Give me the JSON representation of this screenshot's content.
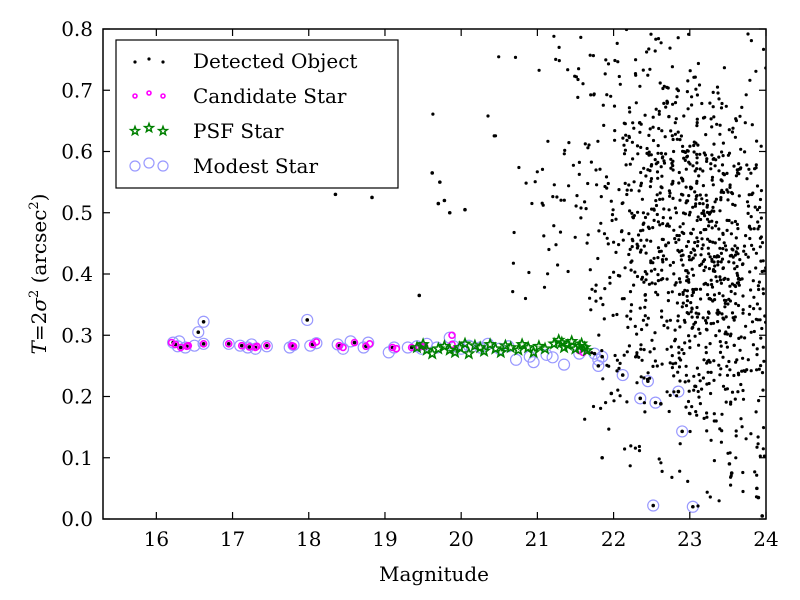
{
  "chart_data": {
    "type": "scatter",
    "title": "",
    "xlabel": "Magnitude",
    "ylabel_parts": {
      "lhs": "T",
      "eq": "=2",
      "sigma": "σ",
      "sup": "2",
      "unit_open": " (arcsec",
      "unit_sup": "2",
      "unit_close": ")"
    },
    "xlim": [
      15.3,
      24.0
    ],
    "ylim": [
      0.0,
      0.8
    ],
    "xticks": [
      "16",
      "17",
      "18",
      "19",
      "20",
      "21",
      "22",
      "23",
      "24"
    ],
    "xtick_values": [
      16,
      17,
      18,
      19,
      20,
      21,
      22,
      23,
      24
    ],
    "yticks": [
      "0.0",
      "0.1",
      "0.2",
      "0.3",
      "0.4",
      "0.5",
      "0.6",
      "0.7",
      "0.8"
    ],
    "ytick_values": [
      0.0,
      0.1,
      0.2,
      0.3,
      0.4,
      0.5,
      0.6,
      0.7,
      0.8
    ],
    "grid": false,
    "legend": {
      "placement": "top-left",
      "entries": [
        {
          "label": "Detected Object",
          "marker": "dot",
          "color": "#000000"
        },
        {
          "label": "Candidate Star",
          "marker": "circle",
          "color": "#ff00ff"
        },
        {
          "label": "PSF Star",
          "marker": "star",
          "color": "#008000"
        },
        {
          "label": "Modest Star",
          "marker": "open-circle",
          "color": "#9999ff"
        }
      ]
    },
    "series": [
      {
        "name": "Modest Star",
        "color": "#9999ff",
        "points": [
          [
            16.22,
            0.288
          ],
          [
            16.28,
            0.282
          ],
          [
            16.3,
            0.29
          ],
          [
            16.38,
            0.28
          ],
          [
            16.5,
            0.283
          ],
          [
            16.55,
            0.305
          ],
          [
            16.62,
            0.322
          ],
          [
            16.62,
            0.286
          ],
          [
            16.95,
            0.286
          ],
          [
            17.1,
            0.283
          ],
          [
            17.2,
            0.28
          ],
          [
            17.25,
            0.285
          ],
          [
            17.3,
            0.278
          ],
          [
            17.45,
            0.282
          ],
          [
            17.75,
            0.28
          ],
          [
            17.8,
            0.284
          ],
          [
            17.98,
            0.325
          ],
          [
            18.02,
            0.283
          ],
          [
            18.1,
            0.287
          ],
          [
            18.38,
            0.285
          ],
          [
            18.45,
            0.278
          ],
          [
            18.55,
            0.29
          ],
          [
            18.72,
            0.28
          ],
          [
            18.78,
            0.288
          ],
          [
            19.05,
            0.272
          ],
          [
            19.12,
            0.28
          ],
          [
            19.3,
            0.28
          ],
          [
            19.42,
            0.282
          ],
          [
            19.48,
            0.278
          ],
          [
            19.55,
            0.286
          ],
          [
            19.68,
            0.28
          ],
          [
            19.85,
            0.296
          ],
          [
            19.9,
            0.282
          ],
          [
            20.0,
            0.278
          ],
          [
            20.1,
            0.283
          ],
          [
            20.25,
            0.28
          ],
          [
            20.35,
            0.286
          ],
          [
            20.5,
            0.278
          ],
          [
            20.62,
            0.282
          ],
          [
            20.72,
            0.26
          ],
          [
            20.9,
            0.265
          ],
          [
            20.95,
            0.256
          ],
          [
            21.12,
            0.268
          ],
          [
            21.2,
            0.264
          ],
          [
            21.35,
            0.252
          ],
          [
            21.55,
            0.27
          ],
          [
            21.75,
            0.27
          ],
          [
            21.8,
            0.26
          ],
          [
            21.8,
            0.25
          ],
          [
            21.85,
            0.265
          ],
          [
            22.12,
            0.235
          ],
          [
            22.35,
            0.197
          ],
          [
            22.45,
            0.225
          ],
          [
            22.55,
            0.19
          ],
          [
            22.85,
            0.208
          ],
          [
            22.9,
            0.143
          ],
          [
            22.52,
            0.022
          ],
          [
            23.04,
            0.02
          ]
        ]
      },
      {
        "name": "Candidate Star",
        "color": "#ff00ff",
        "points": [
          [
            16.2,
            0.288
          ],
          [
            16.25,
            0.285
          ],
          [
            16.32,
            0.28
          ],
          [
            16.4,
            0.282
          ],
          [
            16.42,
            0.283
          ],
          [
            16.62,
            0.286
          ],
          [
            16.95,
            0.286
          ],
          [
            17.12,
            0.283
          ],
          [
            17.22,
            0.281
          ],
          [
            17.3,
            0.28
          ],
          [
            17.32,
            0.282
          ],
          [
            17.45,
            0.283
          ],
          [
            17.78,
            0.283
          ],
          [
            17.8,
            0.282
          ],
          [
            18.05,
            0.285
          ],
          [
            18.1,
            0.289
          ],
          [
            18.4,
            0.283
          ],
          [
            18.45,
            0.28
          ],
          [
            18.6,
            0.288
          ],
          [
            18.75,
            0.282
          ],
          [
            18.8,
            0.286
          ],
          [
            19.1,
            0.28
          ],
          [
            19.15,
            0.278
          ],
          [
            19.35,
            0.28
          ],
          [
            19.45,
            0.281
          ],
          [
            19.48,
            0.282
          ],
          [
            19.52,
            0.282
          ],
          [
            19.88,
            0.3
          ],
          [
            19.88,
            0.285
          ],
          [
            21.55,
            0.275
          ],
          [
            21.6,
            0.272
          ]
        ]
      },
      {
        "name": "PSF Star",
        "color": "#008000",
        "points": [
          [
            19.42,
            0.28
          ],
          [
            19.5,
            0.285
          ],
          [
            19.55,
            0.276
          ],
          [
            19.62,
            0.27
          ],
          [
            19.7,
            0.278
          ],
          [
            19.78,
            0.282
          ],
          [
            19.85,
            0.276
          ],
          [
            19.92,
            0.272
          ],
          [
            19.98,
            0.28
          ],
          [
            20.05,
            0.286
          ],
          [
            20.1,
            0.27
          ],
          [
            20.18,
            0.283
          ],
          [
            20.25,
            0.28
          ],
          [
            20.3,
            0.274
          ],
          [
            20.38,
            0.285
          ],
          [
            20.45,
            0.278
          ],
          [
            20.52,
            0.272
          ],
          [
            20.58,
            0.283
          ],
          [
            20.65,
            0.28
          ],
          [
            20.75,
            0.276
          ],
          [
            20.8,
            0.285
          ],
          [
            20.88,
            0.28
          ],
          [
            20.95,
            0.272
          ],
          [
            21.02,
            0.282
          ],
          [
            21.1,
            0.278
          ],
          [
            21.22,
            0.286
          ],
          [
            21.28,
            0.292
          ],
          [
            21.32,
            0.288
          ],
          [
            21.35,
            0.28
          ],
          [
            21.4,
            0.284
          ],
          [
            21.45,
            0.29
          ],
          [
            21.5,
            0.278
          ],
          [
            21.55,
            0.282
          ],
          [
            21.58,
            0.286
          ],
          [
            21.62,
            0.28
          ],
          [
            21.65,
            0.275
          ]
        ]
      },
      {
        "name": "Detected Object",
        "color": "#000000",
        "points": [
          [
            16.22,
            0.288
          ],
          [
            16.25,
            0.285
          ],
          [
            16.32,
            0.28
          ],
          [
            16.4,
            0.282
          ],
          [
            16.55,
            0.305
          ],
          [
            16.62,
            0.322
          ],
          [
            16.62,
            0.286
          ],
          [
            16.95,
            0.286
          ],
          [
            17.12,
            0.283
          ],
          [
            17.22,
            0.281
          ],
          [
            17.3,
            0.28
          ],
          [
            17.45,
            0.283
          ],
          [
            17.78,
            0.283
          ],
          [
            17.98,
            0.325
          ],
          [
            18.05,
            0.285
          ],
          [
            18.4,
            0.283
          ],
          [
            18.6,
            0.288
          ],
          [
            18.75,
            0.282
          ],
          [
            18.83,
            0.525
          ],
          [
            18.35,
            0.53
          ],
          [
            19.1,
            0.28
          ],
          [
            19.35,
            0.28
          ],
          [
            19.45,
            0.365
          ],
          [
            19.7,
            0.515
          ],
          [
            19.85,
            0.5
          ],
          [
            20.05,
            0.505
          ],
          [
            19.62,
            0.565
          ],
          [
            19.72,
            0.55
          ],
          [
            19.78,
            0.52
          ],
          [
            21.75,
            0.27
          ],
          [
            21.8,
            0.25
          ],
          [
            21.85,
            0.265
          ],
          [
            22.12,
            0.235
          ],
          [
            22.35,
            0.197
          ],
          [
            22.45,
            0.225
          ],
          [
            22.55,
            0.19
          ],
          [
            22.85,
            0.208
          ],
          [
            22.9,
            0.143
          ],
          [
            22.52,
            0.022
          ],
          [
            23.04,
            0.02
          ],
          [
            21.85,
            0.1
          ],
          [
            21.97,
            0.205
          ],
          [
            22.62,
            0.188
          ],
          [
            23.52,
            0.09
          ],
          [
            23.55,
            0.075
          ],
          [
            23.88,
            0.05
          ],
          [
            23.9,
            0.035
          ],
          [
            23.95,
            0.005
          ]
        ]
      }
    ],
    "detected_cloud": {
      "description": "Dense detected-object cloud rendered procedurally from these distribution parameters (seeded)",
      "seed": 12345,
      "count": 1150,
      "mag_range": [
        19.3,
        24.0
      ],
      "T_range": [
        0.02,
        0.8
      ],
      "density_peak_mag": 23.2,
      "density_peak_T": 0.3
    }
  }
}
